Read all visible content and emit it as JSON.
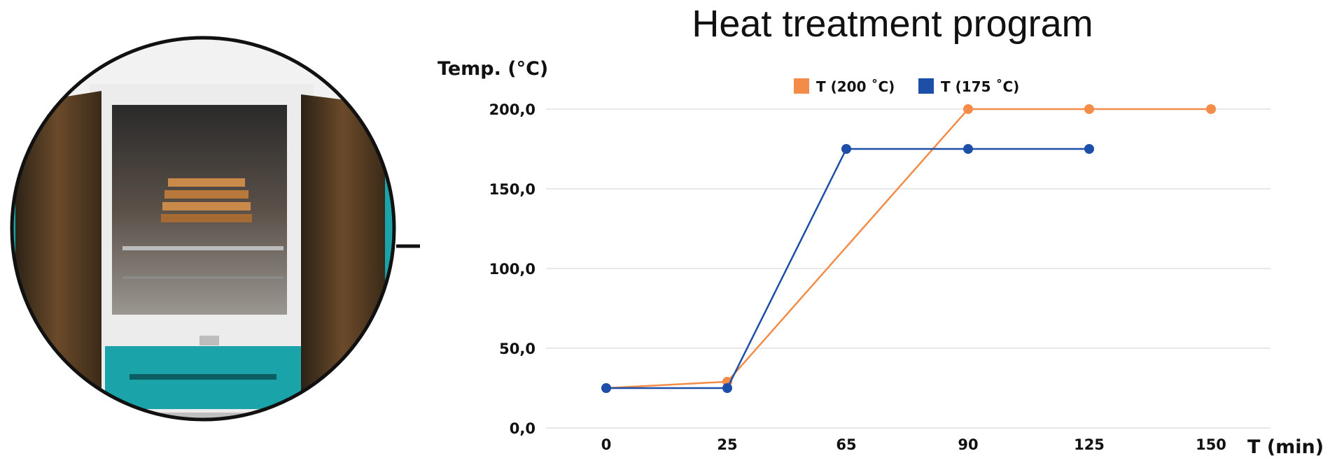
{
  "photo": {
    "subject": "oven-photo"
  },
  "colors": {
    "series_200": "#f28c48",
    "series_175": "#1d4fa8",
    "grid": "#e0e0e0",
    "oven_teal": "#1aa3a8"
  },
  "chart_data": {
    "type": "line",
    "title": "Heat treatment program",
    "ylabel": "Temp. (°C)",
    "xlabel": "T (min)",
    "categories": [
      "0",
      "25",
      "65",
      "90",
      "125",
      "150"
    ],
    "yticks": [
      "0,0",
      "50,0",
      "100,0",
      "150,0",
      "200,0"
    ],
    "ylim": [
      0,
      200
    ],
    "grid": true,
    "legend_position": "top-center",
    "series": [
      {
        "name": "T (200 ˚C)",
        "color": "#f28c48",
        "points": [
          [
            0,
            25
          ],
          [
            1,
            29
          ],
          [
            3,
            200
          ],
          [
            4,
            200
          ],
          [
            5,
            200
          ]
        ]
      },
      {
        "name": "T (175 ˚C)",
        "color": "#1d4fa8",
        "points": [
          [
            0,
            25
          ],
          [
            1,
            25
          ],
          [
            2,
            175
          ],
          [
            3,
            175
          ],
          [
            4,
            175
          ]
        ]
      }
    ]
  }
}
